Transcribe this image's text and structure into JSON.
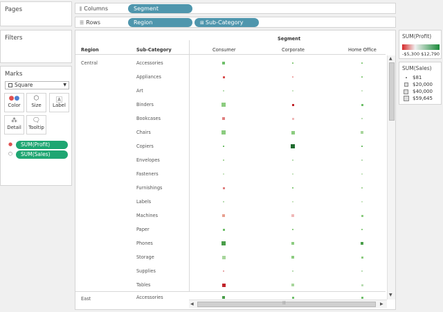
{
  "cards": {
    "pages": "Pages",
    "filters": "Filters",
    "marks": "Marks"
  },
  "shelves": {
    "columns": {
      "label": "Columns",
      "pills": [
        "Segment"
      ]
    },
    "rows": {
      "label": "Rows",
      "pills": [
        "Region",
        "Sub-Category"
      ]
    }
  },
  "marks": {
    "type": "Square",
    "buttons": [
      {
        "label": "Color",
        "icon": "color-dots-icon"
      },
      {
        "label": "Size",
        "icon": "size-icon"
      },
      {
        "label": "Label",
        "icon": "label-icon"
      },
      {
        "label": "Detail",
        "icon": "detail-icon"
      },
      {
        "label": "Tooltip",
        "icon": "tooltip-icon"
      }
    ],
    "pills": [
      {
        "label": "SUM(Profit)",
        "icon": "color-dots-icon"
      },
      {
        "label": "SUM(Sales)",
        "icon": "size-icon"
      }
    ]
  },
  "legends": {
    "profit": {
      "title": "SUM(Profit)",
      "min": "-$5,300",
      "max": "$12,790",
      "neg_color": "#d62728",
      "pos_color": "#1a8a3a"
    },
    "sales": {
      "title": "SUM(Sales)",
      "items": [
        "$81",
        "$20,000",
        "$40,000",
        "$59,645"
      ]
    }
  },
  "view": {
    "segment_header": "Segment",
    "region_header": "Region",
    "subcat_header": "Sub-Category",
    "segments": [
      "Consumer",
      "Corporate",
      "Home Office"
    ],
    "regions": [
      "Central",
      "East"
    ]
  },
  "chart_data": {
    "type": "table",
    "columns": [
      "Consumer",
      "Corporate",
      "Home Office"
    ],
    "rows": [
      {
        "region": "Central",
        "subcategory": "Accessories",
        "size": [
          0.38,
          0.22,
          0.24
        ],
        "color": [
          "#6fbf6a",
          "#8ccc80",
          "#8ccc80"
        ]
      },
      {
        "region": "Central",
        "subcategory": "Appliances",
        "size": [
          0.32,
          0.22,
          0.2
        ],
        "color": [
          "#d94f4f",
          "#f0a8a8",
          "#8ccc80"
        ]
      },
      {
        "region": "Central",
        "subcategory": "Art",
        "size": [
          0.12,
          0.1,
          0.09
        ],
        "color": [
          "#b8dcb2",
          "#c8e4c0",
          "#c8e4c0"
        ]
      },
      {
        "region": "Central",
        "subcategory": "Binders",
        "size": [
          0.58,
          0.3,
          0.28
        ],
        "color": [
          "#8ccc80",
          "#c0232a",
          "#6fbf6a"
        ]
      },
      {
        "region": "Central",
        "subcategory": "Bookcases",
        "size": [
          0.36,
          0.28,
          0.22
        ],
        "color": [
          "#e08080",
          "#f0b8b8",
          "#b8dcb2"
        ]
      },
      {
        "region": "Central",
        "subcategory": "Chairs",
        "size": [
          0.62,
          0.48,
          0.36
        ],
        "color": [
          "#8ccc80",
          "#8ccc80",
          "#a8d69c"
        ]
      },
      {
        "region": "Central",
        "subcategory": "Copiers",
        "size": [
          0.2,
          0.6,
          0.2
        ],
        "color": [
          "#6fbf6a",
          "#1f6b2f",
          "#6fbf6a"
        ]
      },
      {
        "region": "Central",
        "subcategory": "Envelopes",
        "size": [
          0.16,
          0.14,
          0.12
        ],
        "color": [
          "#a8d69c",
          "#b8dcb2",
          "#b8dcb2"
        ]
      },
      {
        "region": "Central",
        "subcategory": "Fasteners",
        "size": [
          0.09,
          0.08,
          0.08
        ],
        "color": [
          "#c8e4c0",
          "#c8e4c0",
          "#c8e4c0"
        ]
      },
      {
        "region": "Central",
        "subcategory": "Furnishings",
        "size": [
          0.32,
          0.2,
          0.22
        ],
        "color": [
          "#e08080",
          "#8ccc80",
          "#a8d69c"
        ]
      },
      {
        "region": "Central",
        "subcategory": "Labels",
        "size": [
          0.1,
          0.09,
          0.09
        ],
        "color": [
          "#b8dcb2",
          "#c8e4c0",
          "#c8e4c0"
        ]
      },
      {
        "region": "Central",
        "subcategory": "Machines",
        "size": [
          0.38,
          0.36,
          0.26
        ],
        "color": [
          "#e8a090",
          "#f0b8b8",
          "#8ccc80"
        ]
      },
      {
        "region": "Central",
        "subcategory": "Paper",
        "size": [
          0.26,
          0.22,
          0.2
        ],
        "color": [
          "#6fbf6a",
          "#8ccc80",
          "#8ccc80"
        ]
      },
      {
        "region": "Central",
        "subcategory": "Phones",
        "size": [
          0.58,
          0.38,
          0.38
        ],
        "color": [
          "#4a9e4a",
          "#8ccc80",
          "#4a9e4a"
        ]
      },
      {
        "region": "Central",
        "subcategory": "Storage",
        "size": [
          0.46,
          0.38,
          0.28
        ],
        "color": [
          "#a8d69c",
          "#8ccc80",
          "#8ccc80"
        ]
      },
      {
        "region": "Central",
        "subcategory": "Supplies",
        "size": [
          0.18,
          0.14,
          0.14
        ],
        "color": [
          "#e8a8a8",
          "#b8dcb2",
          "#b8dcb2"
        ]
      },
      {
        "region": "Central",
        "subcategory": "Tables",
        "size": [
          0.5,
          0.36,
          0.28
        ],
        "color": [
          "#c0232a",
          "#a8d69c",
          "#b8dcb2"
        ]
      },
      {
        "region": "East",
        "subcategory": "Accessories",
        "size": [
          0.42,
          0.28,
          0.32
        ],
        "color": [
          "#4a9e4a",
          "#6fbf6a",
          "#6fbf6a"
        ]
      }
    ]
  }
}
